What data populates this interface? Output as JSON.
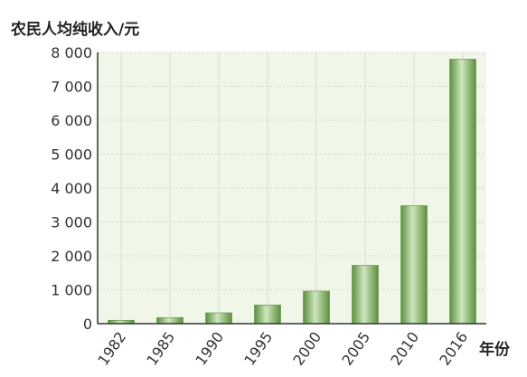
{
  "chart_data": {
    "type": "bar",
    "ylabel": "农民人均纯收入/元",
    "xlabel": "年份",
    "categories": [
      "1982",
      "1985",
      "1990",
      "1995",
      "2000",
      "2005",
      "2010",
      "2016"
    ],
    "values": [
      100,
      180,
      320,
      550,
      960,
      1720,
      3480,
      7800
    ],
    "ylim": [
      0,
      8000
    ],
    "yticks": [
      0,
      1000,
      2000,
      3000,
      4000,
      5000,
      6000,
      7000,
      8000
    ],
    "ytick_labels": [
      "0",
      "1 000",
      "2 000",
      "3 000",
      "4 000",
      "5 000",
      "6 000",
      "7 000",
      "8 000"
    ],
    "grid": true,
    "legend": "none",
    "colors": {
      "plot_background": "#f0f7e8",
      "bar_dark": "#5c8f3f",
      "bar_light": "#cfe6bd",
      "grid": "#d9dcd3",
      "axis": "#333333"
    }
  }
}
